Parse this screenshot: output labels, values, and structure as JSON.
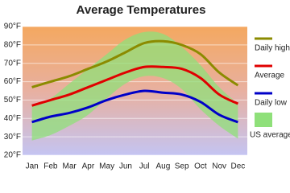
{
  "chart_data": {
    "type": "line",
    "title": "Average Temperatures",
    "categories": [
      "Jan",
      "Feb",
      "Mar",
      "Apr",
      "May",
      "Jun",
      "Jul",
      "Aug",
      "Sep",
      "Oct",
      "Nov",
      "Dec"
    ],
    "ylim": [
      20,
      90
    ],
    "yticks": [
      {
        "value": 20,
        "label": "20°F"
      },
      {
        "value": 30,
        "label": "30°F"
      },
      {
        "value": 40,
        "label": "40°F"
      },
      {
        "value": 50,
        "label": "50°F"
      },
      {
        "value": 60,
        "label": "60°F"
      },
      {
        "value": 70,
        "label": "70°F"
      },
      {
        "value": 80,
        "label": "80°F"
      },
      {
        "value": 90,
        "label": "90°F"
      }
    ],
    "grid": true,
    "legend": "right",
    "band": {
      "name": "US average",
      "color": "#8fe07a",
      "low": [
        28,
        31,
        36,
        42,
        51,
        59,
        63,
        62,
        56,
        45,
        36,
        29
      ],
      "high": [
        47,
        51,
        59,
        67,
        75,
        83,
        87,
        86,
        79,
        69,
        57,
        48
      ]
    },
    "series": [
      {
        "name": "Daily high",
        "color": "#8b8b00",
        "values": [
          57,
          60,
          63,
          67,
          71,
          76,
          81,
          82,
          80,
          75,
          65,
          58
        ]
      },
      {
        "name": "Average",
        "color": "#e00000",
        "values": [
          47,
          50,
          53,
          57,
          61,
          65,
          68,
          68,
          67,
          62,
          53,
          48
        ]
      },
      {
        "name": "Daily low",
        "color": "#0000c8",
        "values": [
          38,
          41,
          43,
          46,
          50,
          53,
          55,
          54,
          53,
          49,
          42,
          38
        ]
      }
    ]
  }
}
